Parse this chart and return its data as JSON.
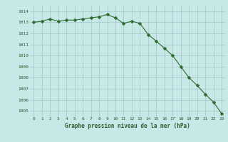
{
  "x": [
    0,
    1,
    2,
    3,
    4,
    5,
    6,
    7,
    8,
    9,
    10,
    11,
    12,
    13,
    14,
    15,
    16,
    17,
    18,
    19,
    20,
    21,
    22,
    23
  ],
  "y": [
    1013.0,
    1013.1,
    1013.3,
    1013.1,
    1013.2,
    1013.2,
    1013.3,
    1013.4,
    1013.5,
    1013.7,
    1013.4,
    1012.9,
    1013.1,
    1012.9,
    1011.9,
    1011.3,
    1010.65,
    1010.0,
    1009.0,
    1008.0,
    1007.3,
    1006.5,
    1005.8,
    1004.75
  ],
  "line_color": "#2d6a2d",
  "marker": "D",
  "marker_size": 2.5,
  "bg_color": "#c8e8e8",
  "grid_color": "#a0c8c8",
  "text_color": "#2d5a2d",
  "xlabel": "Graphe pression niveau de la mer (hPa)",
  "ylim": [
    1004.5,
    1014.5
  ],
  "xlim": [
    -0.5,
    23.5
  ],
  "yticks": [
    1005,
    1006,
    1007,
    1008,
    1009,
    1010,
    1011,
    1012,
    1013,
    1014
  ],
  "xticks": [
    0,
    1,
    2,
    3,
    4,
    5,
    6,
    7,
    8,
    9,
    10,
    11,
    12,
    13,
    14,
    15,
    16,
    17,
    18,
    19,
    20,
    21,
    22,
    23
  ],
  "fig_width": 3.2,
  "fig_height": 2.0,
  "dpi": 100
}
